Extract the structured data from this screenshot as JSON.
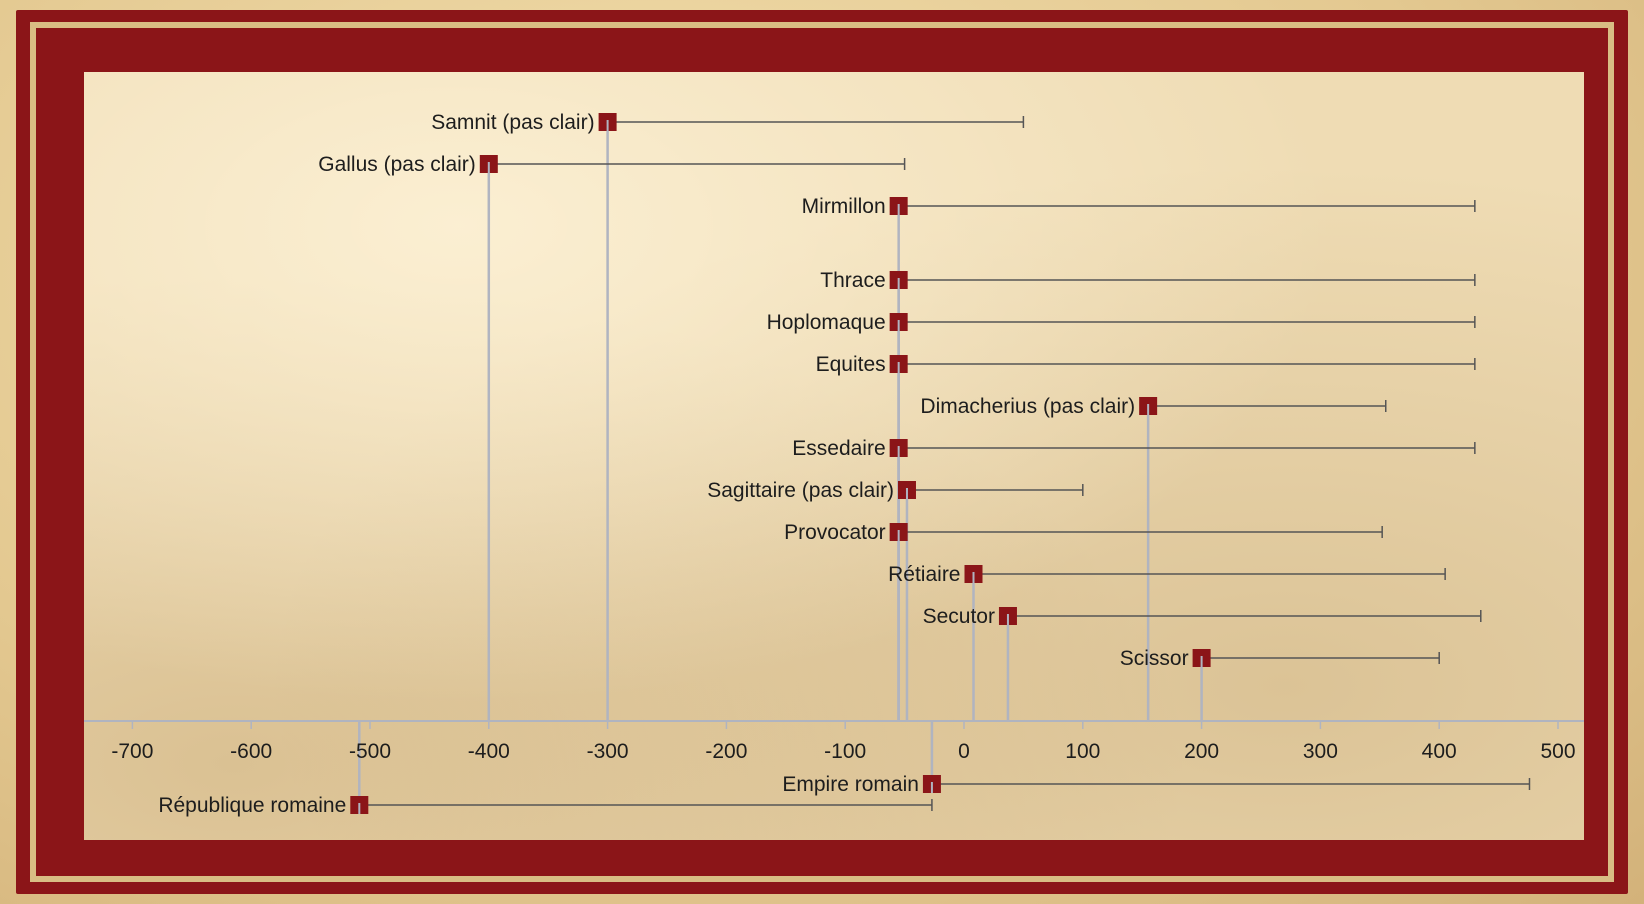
{
  "colors": {
    "frame": "#8b1518",
    "marker": "#8b1518",
    "range_line": "#555555",
    "drop_line": "#b0b4c0",
    "axis": "#b0b4c0"
  },
  "chart_data": {
    "type": "timeline-range",
    "title": "",
    "xlabel": "",
    "ylabel": "",
    "xlim": [
      -720,
      510
    ],
    "x_ticks": [
      -700,
      -600,
      -500,
      -400,
      -300,
      -200,
      -100,
      0,
      100,
      200,
      300,
      400,
      500
    ],
    "tick_labels": [
      "-700",
      "-600",
      "-500",
      "-400",
      "-300",
      "-200",
      "-100",
      "0",
      "100",
      "200",
      "300",
      "400",
      "500"
    ],
    "grid": false,
    "legend": "none",
    "series": [
      {
        "label": "Samnit (pas clair)",
        "start": -300,
        "end": 50
      },
      {
        "label": "Gallus (pas clair)",
        "start": -400,
        "end": -50
      },
      {
        "label": "Mirmillon",
        "start": -55,
        "end": 430
      },
      {
        "label": "Thrace",
        "start": -55,
        "end": 430
      },
      {
        "label": "Hoplomaque",
        "start": -55,
        "end": 430
      },
      {
        "label": "Equites",
        "start": -55,
        "end": 430
      },
      {
        "label": "Dimacherius (pas clair)",
        "start": 155,
        "end": 355
      },
      {
        "label": "Essedaire",
        "start": -55,
        "end": 430
      },
      {
        "label": "Sagittaire (pas clair)",
        "start": -48,
        "end": 100
      },
      {
        "label": "Provocator",
        "start": -55,
        "end": 352
      },
      {
        "label": "Rétiaire",
        "start": 8,
        "end": 405
      },
      {
        "label": "Secutor",
        "start": 37,
        "end": 435
      },
      {
        "label": "Scissor",
        "start": 200,
        "end": 400
      }
    ],
    "periods": [
      {
        "label": "Empire romain",
        "start": -27,
        "end": 476
      },
      {
        "label": "République romaine",
        "start": -509,
        "end": -27
      }
    ]
  }
}
